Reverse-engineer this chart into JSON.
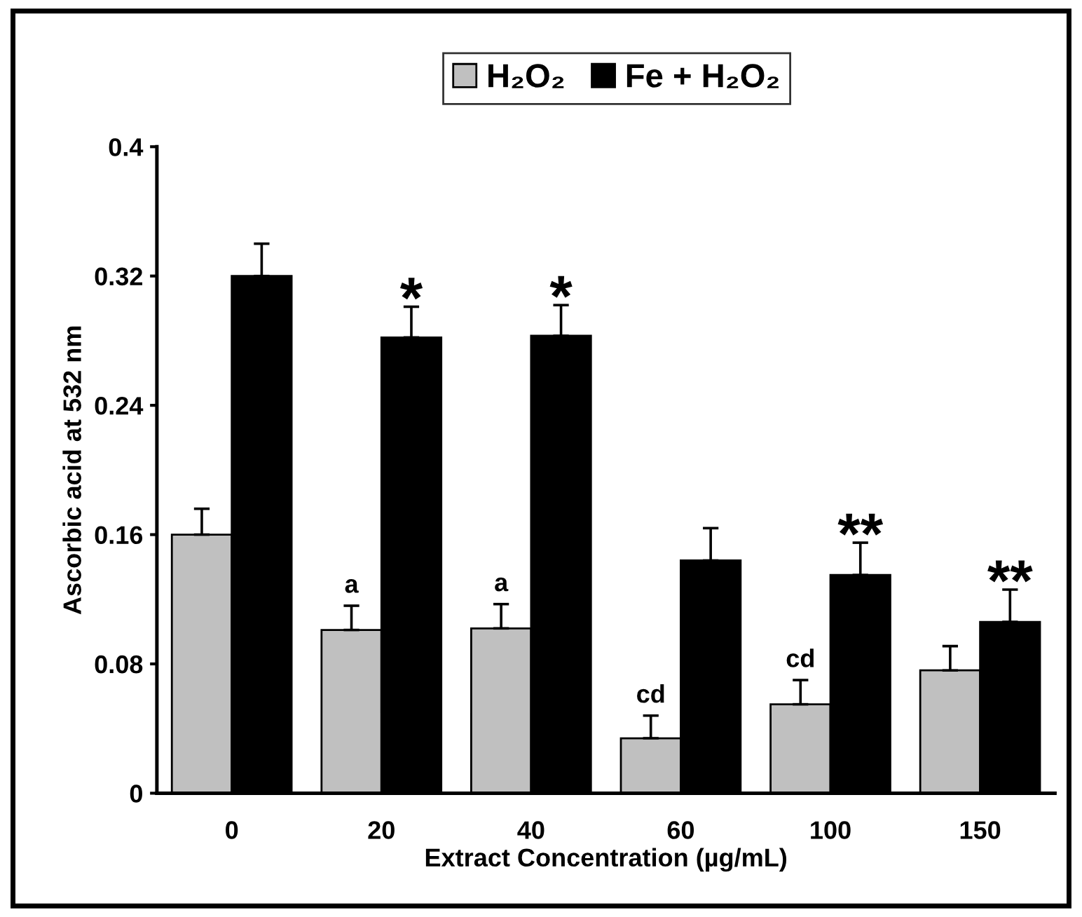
{
  "chart_data": {
    "type": "bar",
    "xlabel": "Extract Concentration (µg/mL)",
    "ylabel": "Ascorbic acid at 532 nm",
    "categories": [
      "0",
      "20",
      "40",
      "60",
      "100",
      "150"
    ],
    "series": [
      {
        "name": "H₂O₂",
        "color": "#c0c0c0",
        "values": [
          0.16,
          0.101,
          0.102,
          0.034,
          0.055,
          0.076
        ],
        "errors": [
          0.016,
          0.015,
          0.015,
          0.014,
          0.015,
          0.015
        ],
        "value_labels": [
          null,
          "a",
          "a",
          "cd",
          "cd",
          null
        ]
      },
      {
        "name": "Fe + H₂O₂",
        "color": "#000000",
        "values": [
          0.32,
          0.282,
          0.283,
          0.144,
          0.135,
          0.106
        ],
        "errors": [
          0.02,
          0.019,
          0.019,
          0.02,
          0.02,
          0.02
        ],
        "value_labels": [
          null,
          "*",
          "*",
          null,
          "**",
          "**"
        ]
      }
    ],
    "ylim": [
      0,
      0.4
    ],
    "yticks": [
      0,
      0.08,
      0.16,
      0.24,
      0.32,
      0.4
    ],
    "grid": false,
    "legend": "top"
  }
}
